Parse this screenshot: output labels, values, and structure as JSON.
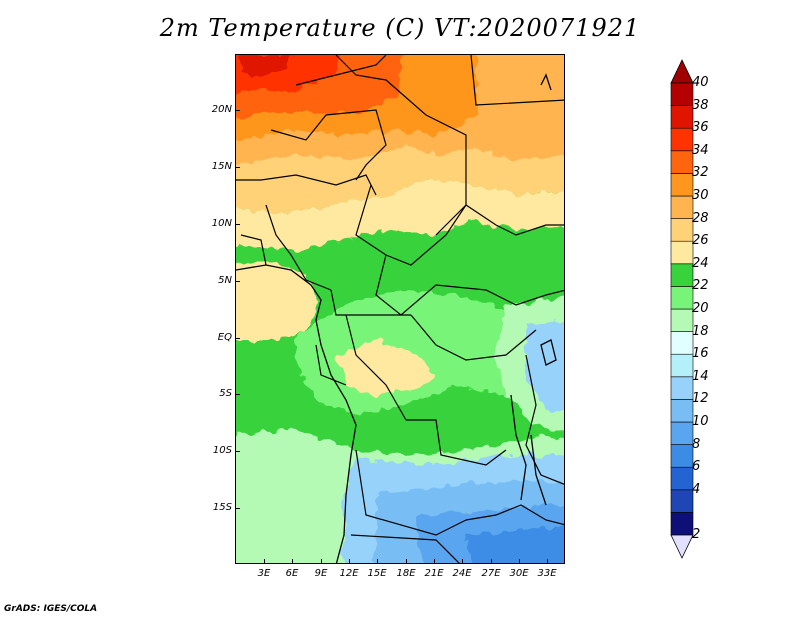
{
  "title": "2m Temperature (C) VT:2020071921",
  "credit": "GrADS: IGES/COLA",
  "map": {
    "lat_labels": [
      "20N",
      "15N",
      "10N",
      "5N",
      "EQ",
      "5S",
      "10S",
      "15S"
    ],
    "lon_labels": [
      "3E",
      "6E",
      "9E",
      "12E",
      "15E",
      "18E",
      "21E",
      "24E",
      "27E",
      "30E",
      "33E"
    ]
  },
  "colorbar": {
    "labels": [
      "2",
      "4",
      "6",
      "8",
      "10",
      "12",
      "14",
      "16",
      "18",
      "20",
      "22",
      "24",
      "26",
      "28",
      "30",
      "32",
      "34",
      "36",
      "38",
      "40"
    ],
    "colors": [
      "#0f0f78",
      "#1e46b4",
      "#2364d2",
      "#3c8ce6",
      "#5aa5f0",
      "#78bef5",
      "#96d2fa",
      "#b4f0fa",
      "#e1ffff",
      "#b4fab4",
      "#78f578",
      "#37d23c",
      "#ffe9a0",
      "#ffd278",
      "#ffb450",
      "#ff961e",
      "#ff640f",
      "#ff3200",
      "#e11400",
      "#b40000"
    ],
    "over_color": "#a00000",
    "under_color": "#e1e1ff"
  }
}
